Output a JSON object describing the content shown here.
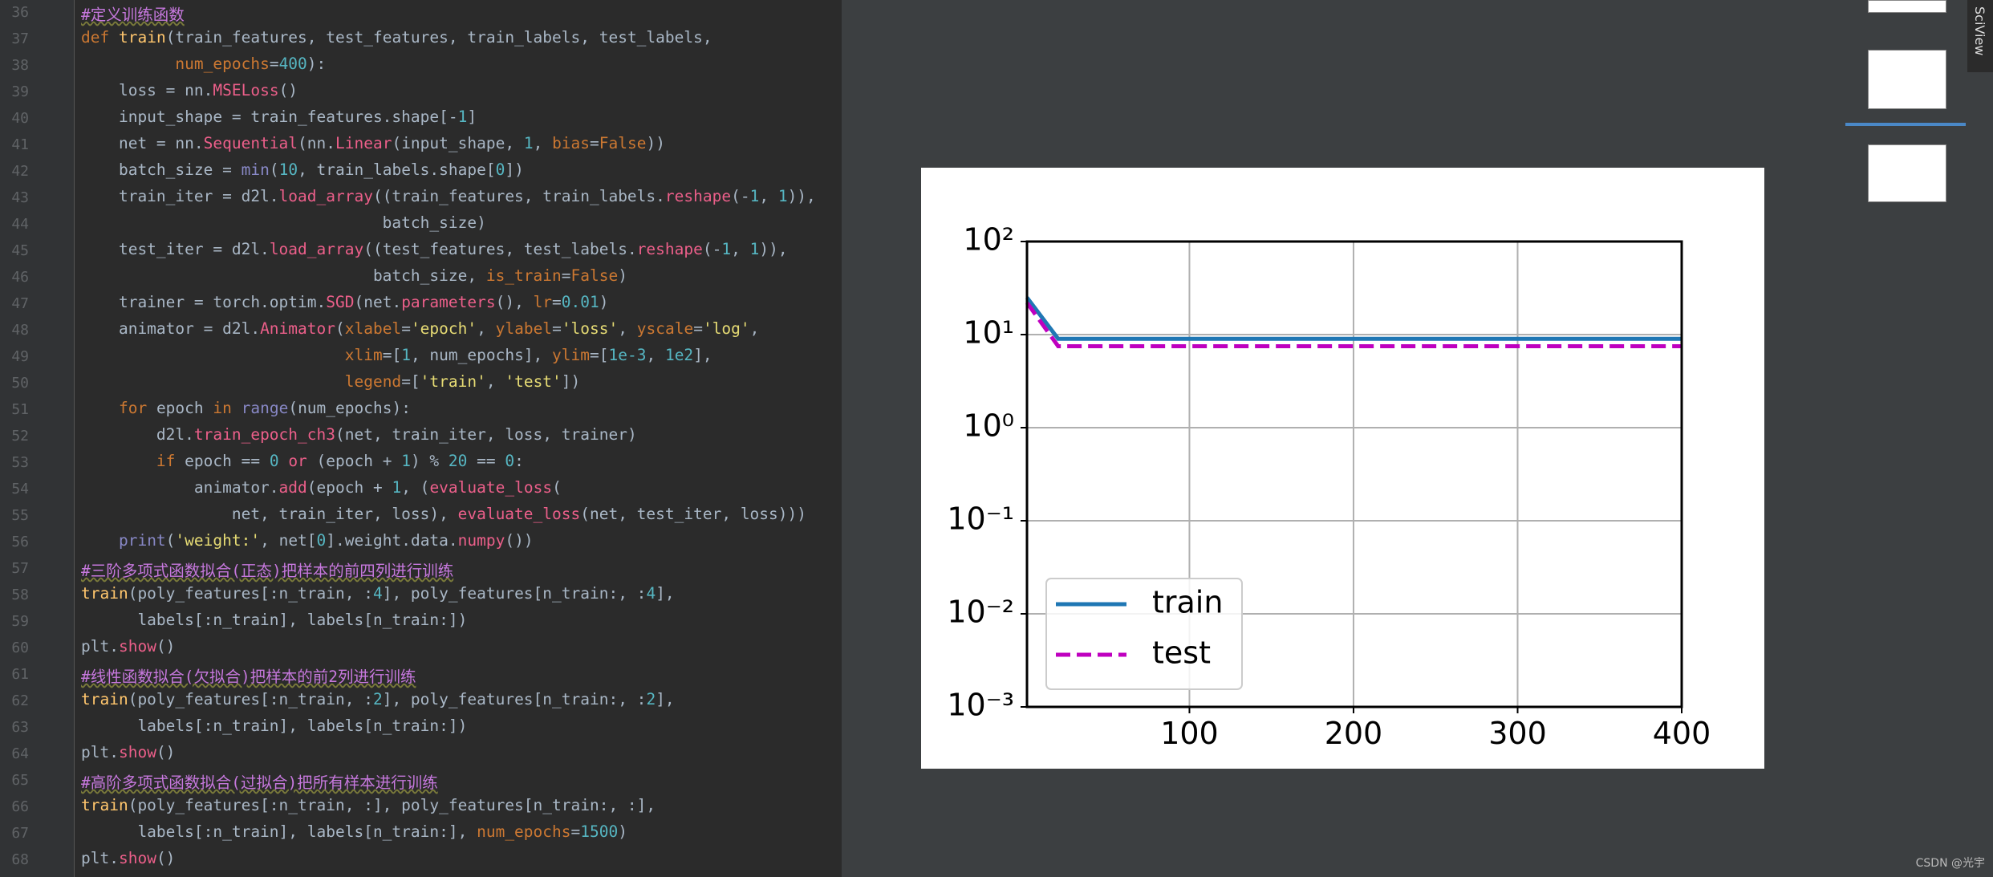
{
  "editor": {
    "lines": [
      {
        "number": 36,
        "text": "#定义训练函数"
      },
      {
        "number": 37,
        "text": "def train(train_features, test_features, train_labels, test_labels,"
      },
      {
        "number": 38,
        "text": "          num_epochs=400):"
      },
      {
        "number": 39,
        "text": "    loss = nn.MSELoss()"
      },
      {
        "number": 40,
        "text": "    input_shape = train_features.shape[-1]"
      },
      {
        "number": 41,
        "text": "    net = nn.Sequential(nn.Linear(input_shape, 1, bias=False))"
      },
      {
        "number": 42,
        "text": "    batch_size = min(10, train_labels.shape[0])"
      },
      {
        "number": 43,
        "text": "    train_iter = d2l.load_array((train_features, train_labels.reshape(-1, 1)),"
      },
      {
        "number": 44,
        "text": "                                batch_size)"
      },
      {
        "number": 45,
        "text": "    test_iter = d2l.load_array((test_features, test_labels.reshape(-1, 1)),"
      },
      {
        "number": 46,
        "text": "                               batch_size, is_train=False)"
      },
      {
        "number": 47,
        "text": "    trainer = torch.optim.SGD(net.parameters(), lr=0.01)"
      },
      {
        "number": 48,
        "text": "    animator = d2l.Animator(xlabel='epoch', ylabel='loss', yscale='log',"
      },
      {
        "number": 49,
        "text": "                            xlim=[1, num_epochs], ylim=[1e-3, 1e2],"
      },
      {
        "number": 50,
        "text": "                            legend=['train', 'test'])"
      },
      {
        "number": 51,
        "text": "    for epoch in range(num_epochs):"
      },
      {
        "number": 52,
        "text": "        d2l.train_epoch_ch3(net, train_iter, loss, trainer)"
      },
      {
        "number": 53,
        "text": "        if epoch == 0 or (epoch + 1) % 20 == 0:"
      },
      {
        "number": 54,
        "text": "            animator.add(epoch + 1, (evaluate_loss("
      },
      {
        "number": 55,
        "text": "                net, train_iter, loss), evaluate_loss(net, test_iter, loss)))"
      },
      {
        "number": 56,
        "text": "    print('weight:', net[0].weight.data.numpy())"
      },
      {
        "number": 57,
        "text": "#三阶多项式函数拟合(正态)把样本的前四列进行训练"
      },
      {
        "number": 58,
        "text": "train(poly_features[:n_train, :4], poly_features[n_train:, :4],"
      },
      {
        "number": 59,
        "text": "      labels[:n_train], labels[n_train:])"
      },
      {
        "number": 60,
        "text": "plt.show()"
      },
      {
        "number": 61,
        "text": "#线性函数拟合(欠拟合)把样本的前2列进行训练"
      },
      {
        "number": 62,
        "text": "train(poly_features[:n_train, :2], poly_features[n_train:, :2],"
      },
      {
        "number": 63,
        "text": "      labels[:n_train], labels[n_train:])"
      },
      {
        "number": 64,
        "text": "plt.show()"
      },
      {
        "number": 65,
        "text": "#高阶多项式函数拟合(过拟合)把所有样本进行训练"
      },
      {
        "number": 66,
        "text": "train(poly_features[:n_train, :], poly_features[n_train:, :],"
      },
      {
        "number": 67,
        "text": "      labels[:n_train], labels[n_train:], num_epochs=1500)"
      },
      {
        "number": 68,
        "text": "plt.show()"
      }
    ]
  },
  "sidebar": {
    "tab": "SciView"
  },
  "watermark": "CSDN @光宇",
  "chart_data": {
    "type": "line",
    "log_y": true,
    "grid": true,
    "legend": "lower left",
    "xlim": [
      1,
      400
    ],
    "xticks": [
      100,
      200,
      300,
      400
    ],
    "ylim": [
      0.001,
      100
    ],
    "yticks": [
      {
        "value": 0.001,
        "label": "10⁻³"
      },
      {
        "value": 0.01,
        "label": "10⁻²"
      },
      {
        "value": 0.1,
        "label": "10⁻¹"
      },
      {
        "value": 1,
        "label": "10⁰"
      },
      {
        "value": 10,
        "label": "10¹"
      },
      {
        "value": 100,
        "label": "10²"
      }
    ],
    "series": [
      {
        "name": "train",
        "color": "#1f77b4",
        "linestyle": "solid",
        "x": [
          1,
          20,
          400
        ],
        "values": [
          25,
          9,
          9
        ]
      },
      {
        "name": "test",
        "color": "#bf00bf",
        "linestyle": "dashed",
        "x": [
          1,
          20,
          400
        ],
        "values": [
          22,
          7.5,
          7.5
        ]
      }
    ]
  }
}
